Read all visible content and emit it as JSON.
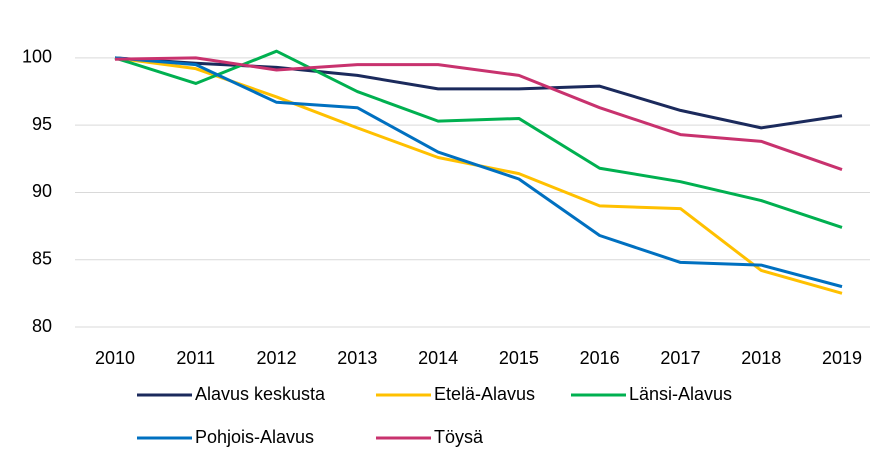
{
  "chart_data": {
    "type": "line",
    "x": [
      "2010",
      "2011",
      "2012",
      "2013",
      "2014",
      "2015",
      "2016",
      "2017",
      "2018",
      "2019"
    ],
    "series": [
      {
        "name": "Alavus keskusta",
        "color": "#1b2a5c",
        "values": [
          100,
          99.6,
          99.3,
          98.7,
          97.7,
          97.7,
          97.9,
          96.1,
          94.8,
          95.7
        ]
      },
      {
        "name": "Etelä-Alavus",
        "color": "#ffc000",
        "values": [
          100,
          99.2,
          97.1,
          94.8,
          92.6,
          91.4,
          89.0,
          88.8,
          84.2,
          82.5
        ]
      },
      {
        "name": "Länsi-Alavus",
        "color": "#00b050",
        "values": [
          100,
          98.1,
          100.5,
          97.5,
          95.3,
          95.5,
          91.8,
          90.8,
          89.4,
          87.4
        ]
      },
      {
        "name": "Pohjois-Alavus",
        "color": "#0070c0",
        "values": [
          100,
          99.5,
          96.7,
          96.3,
          93.0,
          91.0,
          86.8,
          84.8,
          84.6,
          83.0
        ]
      },
      {
        "name": "Töysä",
        "color": "#c8326e",
        "values": [
          99.9,
          100,
          99.1,
          99.5,
          99.5,
          98.7,
          96.3,
          94.3,
          93.8,
          91.7
        ]
      }
    ],
    "ylim": [
      80,
      102
    ],
    "yticks": [
      80,
      85,
      90,
      95,
      100
    ],
    "grid": true,
    "legend": "bottom"
  }
}
